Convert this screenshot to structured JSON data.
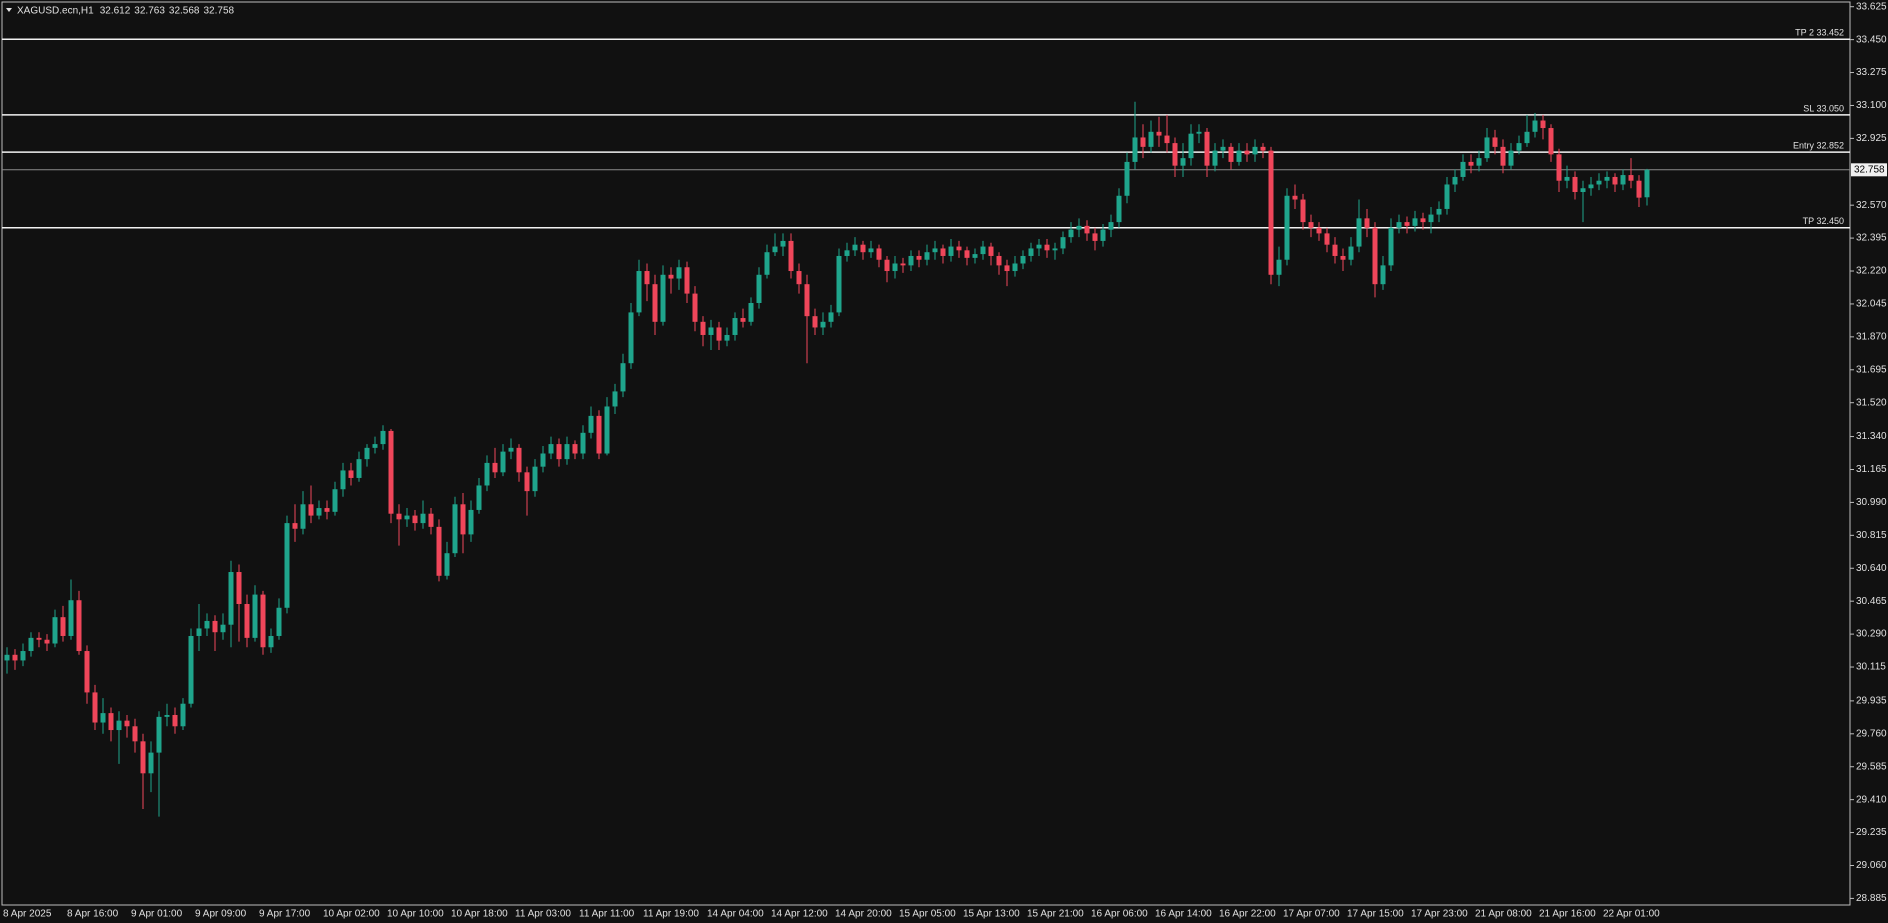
{
  "chart_data": {
    "type": "candlestick",
    "title": "XAGUSD.ecn,H1",
    "background": "#111111",
    "up_color": "#1fa58c",
    "down_color": "#f0465a",
    "level_color": "#f2f2f2",
    "price_line_color": "#8a8a8a",
    "categories": [
      "8 Apr 2025",
      null,
      null,
      null,
      null,
      null,
      null,
      null,
      "8 Apr 16:00",
      null,
      null,
      null,
      null,
      null,
      null,
      null,
      "9 Apr 01:00",
      null,
      null,
      null,
      null,
      null,
      null,
      null,
      "9 Apr 09:00",
      null,
      null,
      null,
      null,
      null,
      null,
      null,
      "9 Apr 17:00",
      null,
      null,
      null,
      null,
      null,
      null,
      null,
      "10 Apr 02:00",
      null,
      null,
      null,
      null,
      null,
      null,
      null,
      "10 Apr 10:00",
      null,
      null,
      null,
      null,
      null,
      null,
      null,
      "10 Apr 18:00",
      null,
      null,
      null,
      null,
      null,
      null,
      null,
      "11 Apr 03:00",
      null,
      null,
      null,
      null,
      null,
      null,
      null,
      "11 Apr 11:00",
      null,
      null,
      null,
      null,
      null,
      null,
      null,
      "11 Apr 19:00",
      null,
      null,
      null,
      null,
      null,
      null,
      null,
      "14 Apr 04:00",
      null,
      null,
      null,
      null,
      null,
      null,
      null,
      "14 Apr 12:00",
      null,
      null,
      null,
      null,
      null,
      null,
      null,
      "14 Apr 20:00",
      null,
      null,
      null,
      null,
      null,
      null,
      null,
      "15 Apr 05:00",
      null,
      null,
      null,
      null,
      null,
      null,
      null,
      "15 Apr 13:00",
      null,
      null,
      null,
      null,
      null,
      null,
      null,
      "15 Apr 21:00",
      null,
      null,
      null,
      null,
      null,
      null,
      null,
      "16 Apr 06:00",
      null,
      null,
      null,
      null,
      null,
      null,
      null,
      "16 Apr 14:00",
      null,
      null,
      null,
      null,
      null,
      null,
      null,
      "16 Apr 22:00",
      null,
      null,
      null,
      null,
      null,
      null,
      null,
      "17 Apr 07:00",
      null,
      null,
      null,
      null,
      null,
      null,
      null,
      "17 Apr 15:00",
      null,
      null,
      null,
      null,
      null,
      null,
      null,
      "17 Apr 23:00",
      null,
      null,
      null,
      null,
      null,
      null,
      null,
      "21 Apr 08:00",
      null,
      null,
      null,
      null,
      null,
      null,
      null,
      "21 Apr 16:00",
      null,
      null,
      null,
      null,
      null,
      null,
      null,
      "22 Apr 01:00",
      null,
      null,
      null,
      null,
      null
    ],
    "open": [
      30.15,
      30.18,
      30.15,
      30.2,
      30.27,
      30.26,
      30.24,
      30.38,
      30.28,
      30.47,
      30.2,
      29.98,
      29.82,
      29.87,
      29.78,
      29.83,
      29.8,
      29.72,
      29.55,
      29.66,
      29.85,
      29.86,
      29.8,
      29.92,
      30.28,
      30.32,
      30.36,
      30.3,
      30.34,
      30.62,
      30.45,
      30.27,
      30.5,
      30.22,
      30.28,
      30.43,
      30.88,
      30.85,
      30.98,
      30.92,
      30.96,
      30.94,
      31.06,
      31.16,
      31.12,
      31.22,
      31.28,
      31.3,
      31.37,
      30.93,
      30.9,
      30.92,
      30.88,
      30.93,
      30.86,
      30.6,
      30.72,
      30.98,
      30.82,
      30.95,
      31.08,
      31.2,
      31.15,
      31.26,
      31.28,
      31.15,
      31.05,
      31.18,
      31.25,
      31.3,
      31.22,
      31.3,
      31.25,
      31.36,
      31.45,
      31.25,
      31.5,
      31.58,
      31.73,
      32.0,
      32.22,
      32.15,
      31.95,
      32.2,
      32.18,
      32.24,
      32.1,
      31.95,
      31.88,
      31.92,
      31.85,
      31.88,
      31.97,
      31.95,
      32.05,
      32.2,
      32.32,
      32.35,
      32.38,
      32.22,
      32.15,
      31.98,
      31.92,
      31.95,
      32.0,
      32.3,
      32.33,
      32.36,
      32.32,
      32.34,
      32.28,
      32.22,
      32.26,
      32.25,
      32.3,
      32.28,
      32.32,
      32.34,
      32.3,
      32.35,
      32.33,
      32.29,
      32.31,
      32.35,
      32.3,
      32.25,
      32.22,
      32.26,
      32.3,
      32.34,
      32.36,
      32.33,
      32.34,
      32.4,
      32.44,
      32.46,
      32.42,
      32.38,
      32.44,
      32.48,
      32.62,
      32.8,
      32.93,
      32.88,
      32.96,
      32.94,
      32.9,
      32.78,
      32.82,
      32.95,
      32.96,
      32.78,
      32.86,
      32.88,
      32.8,
      32.86,
      32.84,
      32.88,
      32.86,
      32.2,
      32.28,
      32.62,
      32.6,
      32.48,
      32.45,
      32.42,
      32.36,
      32.3,
      32.28,
      32.35,
      32.5,
      32.45,
      32.15,
      32.25,
      32.45,
      32.48,
      32.46,
      32.5,
      32.48,
      32.52,
      32.55,
      32.68,
      32.72,
      32.8,
      32.78,
      32.82,
      32.93,
      32.88,
      32.78,
      32.86,
      32.9,
      32.96,
      33.02,
      32.98,
      32.84,
      32.7,
      32.72,
      32.64,
      32.66,
      32.68,
      32.7,
      32.72,
      32.68,
      32.73,
      32.7,
      32.612
    ],
    "high": [
      30.22,
      30.21,
      30.24,
      30.3,
      30.3,
      30.29,
      30.42,
      30.44,
      30.58,
      30.52,
      30.23,
      30.02,
      29.95,
      29.9,
      29.88,
      29.86,
      29.84,
      29.76,
      29.72,
      29.88,
      29.92,
      29.9,
      29.95,
      30.32,
      30.45,
      30.4,
      30.39,
      30.4,
      30.68,
      30.66,
      30.5,
      30.55,
      30.52,
      30.32,
      30.48,
      30.92,
      30.98,
      31.05,
      31.08,
      31.0,
      31.0,
      31.1,
      31.2,
      31.2,
      31.26,
      31.3,
      31.34,
      31.4,
      31.38,
      30.98,
      30.96,
      30.95,
      31.0,
      30.96,
      30.9,
      30.78,
      31.02,
      31.04,
      31.0,
      31.12,
      31.24,
      31.28,
      31.3,
      31.33,
      31.3,
      31.18,
      31.22,
      31.29,
      31.34,
      31.33,
      31.34,
      31.32,
      31.4,
      31.5,
      31.48,
      31.55,
      31.62,
      31.78,
      32.05,
      32.28,
      32.26,
      32.2,
      32.25,
      32.24,
      32.28,
      32.27,
      32.14,
      31.98,
      31.96,
      31.95,
      31.92,
      32.0,
      32.02,
      32.08,
      32.24,
      32.36,
      32.42,
      32.42,
      32.42,
      32.26,
      32.2,
      32.02,
      32.0,
      32.04,
      32.34,
      32.37,
      32.4,
      32.38,
      32.38,
      32.36,
      32.3,
      32.3,
      32.29,
      32.33,
      32.33,
      32.36,
      32.38,
      32.36,
      32.39,
      32.38,
      32.35,
      32.34,
      32.38,
      32.37,
      32.32,
      32.28,
      32.3,
      32.33,
      32.37,
      32.39,
      32.39,
      32.37,
      32.43,
      32.48,
      32.5,
      32.49,
      32.45,
      32.47,
      32.52,
      32.66,
      32.85,
      33.12,
      33.0,
      33.02,
      33.04,
      33.05,
      32.93,
      32.9,
      33.0,
      33.0,
      32.98,
      32.9,
      32.92,
      32.9,
      32.9,
      32.9,
      32.92,
      32.9,
      32.88,
      32.35,
      32.66,
      32.68,
      32.63,
      32.52,
      32.48,
      32.45,
      32.4,
      32.34,
      32.4,
      32.6,
      32.55,
      32.48,
      32.3,
      32.5,
      32.52,
      32.51,
      32.54,
      32.53,
      32.56,
      32.59,
      32.72,
      32.76,
      32.84,
      32.84,
      32.86,
      32.98,
      32.97,
      32.92,
      32.9,
      32.94,
      33.05,
      33.06,
      33.05,
      33.0,
      32.87,
      32.78,
      32.75,
      32.7,
      32.72,
      32.74,
      32.75,
      32.74,
      32.76,
      32.82,
      32.73,
      32.763
    ],
    "low": [
      30.08,
      30.1,
      30.12,
      30.17,
      30.22,
      30.2,
      30.22,
      30.25,
      30.26,
      30.18,
      29.92,
      29.78,
      29.76,
      29.72,
      29.6,
      29.74,
      29.66,
      29.36,
      29.45,
      29.32,
      29.8,
      29.76,
      29.78,
      29.9,
      30.2,
      30.28,
      30.2,
      30.26,
      30.22,
      30.25,
      30.22,
      30.25,
      30.18,
      30.19,
      30.26,
      30.4,
      30.78,
      30.82,
      30.88,
      30.9,
      30.9,
      30.92,
      31.02,
      31.08,
      31.1,
      31.18,
      31.25,
      31.27,
      30.88,
      30.76,
      30.86,
      30.84,
      30.85,
      30.82,
      30.57,
      30.58,
      30.7,
      30.72,
      30.78,
      30.93,
      31.05,
      31.12,
      31.13,
      31.22,
      31.1,
      30.92,
      31.02,
      31.15,
      31.22,
      31.18,
      31.19,
      31.22,
      31.22,
      31.33,
      31.22,
      31.24,
      31.46,
      31.55,
      31.7,
      31.98,
      32.06,
      31.88,
      31.93,
      32.1,
      32.12,
      32.05,
      31.9,
      31.82,
      31.8,
      31.8,
      31.82,
      31.85,
      31.92,
      31.93,
      32.02,
      32.18,
      32.3,
      32.3,
      32.18,
      32.1,
      31.73,
      31.88,
      31.88,
      31.92,
      31.98,
      32.27,
      32.3,
      32.28,
      32.29,
      32.24,
      32.16,
      32.18,
      32.21,
      32.22,
      32.24,
      32.25,
      32.28,
      32.26,
      32.27,
      32.29,
      32.25,
      32.26,
      32.28,
      32.25,
      32.2,
      32.14,
      32.19,
      32.23,
      32.27,
      32.3,
      32.29,
      32.28,
      32.31,
      32.37,
      32.4,
      32.38,
      32.33,
      32.35,
      32.4,
      32.45,
      32.58,
      32.76,
      32.82,
      32.85,
      32.88,
      32.85,
      32.72,
      32.72,
      32.78,
      32.9,
      32.72,
      32.75,
      32.82,
      32.76,
      32.78,
      32.8,
      32.8,
      32.82,
      32.15,
      32.14,
      32.25,
      32.55,
      32.44,
      32.4,
      32.38,
      32.32,
      32.26,
      32.22,
      32.25,
      32.32,
      32.4,
      32.08,
      32.12,
      32.22,
      32.42,
      32.42,
      32.43,
      32.44,
      32.42,
      32.48,
      32.52,
      32.64,
      32.7,
      32.74,
      32.75,
      32.8,
      32.84,
      32.74,
      32.76,
      32.84,
      32.88,
      32.93,
      32.92,
      32.8,
      32.64,
      32.66,
      32.6,
      32.48,
      32.62,
      32.65,
      32.66,
      32.64,
      32.65,
      32.66,
      32.56,
      32.568
    ],
    "close": [
      30.18,
      30.15,
      30.2,
      30.27,
      30.26,
      30.24,
      30.38,
      30.28,
      30.47,
      30.2,
      29.98,
      29.82,
      29.87,
      29.78,
      29.83,
      29.8,
      29.72,
      29.55,
      29.66,
      29.85,
      29.86,
      29.8,
      29.92,
      30.28,
      30.32,
      30.36,
      30.3,
      30.34,
      30.62,
      30.45,
      30.27,
      30.5,
      30.22,
      30.28,
      30.43,
      30.88,
      30.85,
      30.98,
      30.92,
      30.96,
      30.94,
      31.06,
      31.16,
      31.12,
      31.22,
      31.28,
      31.3,
      31.37,
      30.93,
      30.9,
      30.92,
      30.88,
      30.93,
      30.86,
      30.6,
      30.72,
      30.98,
      30.82,
      30.95,
      31.08,
      31.2,
      31.15,
      31.26,
      31.28,
      31.15,
      31.05,
      31.18,
      31.25,
      31.3,
      31.22,
      31.3,
      31.25,
      31.36,
      31.45,
      31.25,
      31.5,
      31.58,
      31.73,
      32.0,
      32.22,
      32.15,
      31.95,
      32.2,
      32.18,
      32.24,
      32.1,
      31.95,
      31.88,
      31.92,
      31.85,
      31.88,
      31.97,
      31.95,
      32.05,
      32.2,
      32.32,
      32.35,
      32.38,
      32.22,
      32.15,
      31.98,
      31.92,
      31.95,
      32.0,
      32.3,
      32.33,
      32.36,
      32.32,
      32.34,
      32.28,
      32.22,
      32.26,
      32.25,
      32.3,
      32.28,
      32.32,
      32.34,
      32.3,
      32.35,
      32.33,
      32.29,
      32.31,
      32.35,
      32.3,
      32.25,
      32.22,
      32.26,
      32.3,
      32.34,
      32.36,
      32.33,
      32.34,
      32.4,
      32.44,
      32.46,
      32.42,
      32.38,
      32.44,
      32.48,
      32.62,
      32.8,
      32.93,
      32.88,
      32.96,
      32.94,
      32.9,
      32.78,
      32.82,
      32.95,
      32.96,
      32.78,
      32.86,
      32.88,
      32.8,
      32.86,
      32.84,
      32.88,
      32.86,
      32.2,
      32.28,
      32.62,
      32.6,
      32.48,
      32.45,
      32.42,
      32.36,
      32.3,
      32.28,
      32.35,
      32.5,
      32.45,
      32.15,
      32.25,
      32.45,
      32.48,
      32.46,
      32.5,
      32.48,
      32.52,
      32.55,
      32.68,
      32.72,
      32.8,
      32.78,
      32.82,
      32.93,
      32.88,
      32.78,
      32.86,
      32.9,
      32.96,
      33.02,
      32.98,
      32.84,
      32.7,
      32.72,
      32.64,
      32.66,
      32.68,
      32.7,
      32.72,
      32.68,
      32.73,
      32.7,
      32.61,
      32.758
    ],
    "levels": [
      {
        "label": "TP 2 33.452",
        "value": 33.452
      },
      {
        "label": "SL 33.050",
        "value": 33.05
      },
      {
        "label": "Entry 32.852",
        "value": 32.852
      },
      {
        "label": "TP 32.450",
        "value": 32.45
      }
    ],
    "ylim": [
      28.85,
      33.65
    ],
    "yticks": [
      {
        "value": 33.625,
        "label": "33.625"
      },
      {
        "value": 33.45,
        "label": "33.450"
      },
      {
        "value": 33.275,
        "label": "33.275"
      },
      {
        "value": 33.1,
        "label": "33.100"
      },
      {
        "value": 32.925,
        "label": "32.925"
      },
      {
        "value": 32.57,
        "label": "32.570"
      },
      {
        "value": 32.395,
        "label": "32.395"
      },
      {
        "value": 32.22,
        "label": "32.220"
      },
      {
        "value": 32.045,
        "label": "32.045"
      },
      {
        "value": 31.87,
        "label": "31.870"
      },
      {
        "value": 31.695,
        "label": "31.695"
      },
      {
        "value": 31.52,
        "label": "31.520"
      },
      {
        "value": 31.34,
        "label": "31.340"
      },
      {
        "value": 31.165,
        "label": "31.165"
      },
      {
        "value": 30.99,
        "label": "30.990"
      },
      {
        "value": 30.815,
        "label": "30.815"
      },
      {
        "value": 30.64,
        "label": "30.640"
      },
      {
        "value": 30.465,
        "label": "30.465"
      },
      {
        "value": 30.29,
        "label": "30.290"
      },
      {
        "value": 30.115,
        "label": "30.115"
      },
      {
        "value": 29.935,
        "label": "29.935"
      },
      {
        "value": 29.76,
        "label": "29.760"
      },
      {
        "value": 29.585,
        "label": "29.585"
      },
      {
        "value": 29.41,
        "label": "29.410"
      },
      {
        "value": 29.235,
        "label": "29.235"
      },
      {
        "value": 29.06,
        "label": "29.060"
      },
      {
        "value": 28.885,
        "label": "28.885"
      }
    ]
  }
}
